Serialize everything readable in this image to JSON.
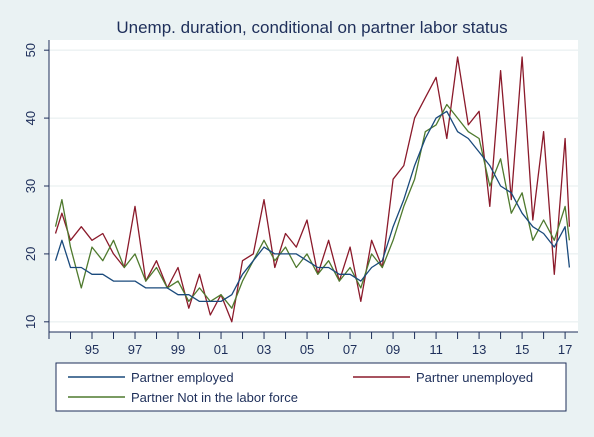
{
  "chart_data": {
    "type": "line",
    "title": "Unemp. duration, conditional on partner labor status",
    "xlabel": "",
    "ylabel": "",
    "xlim": [
      1993.0,
      2017.6
    ],
    "ylim": [
      8.5,
      51.5
    ],
    "y_ticks": [
      10,
      20,
      30,
      40,
      50
    ],
    "x_tick_labels": [
      {
        "x": 1995,
        "label": "95"
      },
      {
        "x": 1997,
        "label": "97"
      },
      {
        "x": 1999,
        "label": "99"
      },
      {
        "x": 2001,
        "label": "01"
      },
      {
        "x": 2003,
        "label": "03"
      },
      {
        "x": 2005,
        "label": "05"
      },
      {
        "x": 2007,
        "label": "07"
      },
      {
        "x": 2009,
        "label": "09"
      },
      {
        "x": 2011,
        "label": "11"
      },
      {
        "x": 2013,
        "label": "13"
      },
      {
        "x": 2015,
        "label": "15"
      },
      {
        "x": 2017,
        "label": "17"
      }
    ],
    "grid": "horizontal",
    "legend_position": "bottom",
    "series": [
      {
        "name": "Partner employed",
        "color": "#1a4a7c",
        "x": [
          1993.3,
          1993.6,
          1994.0,
          1994.5,
          1995.0,
          1995.5,
          1996.0,
          1996.5,
          1997.0,
          1997.5,
          1998.0,
          1998.5,
          1999.0,
          1999.5,
          2000.0,
          2000.5,
          2001.0,
          2001.5,
          2002.0,
          2002.5,
          2003.0,
          2003.5,
          2004.0,
          2004.5,
          2005.0,
          2005.5,
          2006.0,
          2006.5,
          2007.0,
          2007.5,
          2008.0,
          2008.5,
          2009.0,
          2009.5,
          2010.0,
          2010.5,
          2011.0,
          2011.5,
          2012.0,
          2012.5,
          2013.0,
          2013.5,
          2014.0,
          2014.5,
          2015.0,
          2015.5,
          2016.0,
          2016.5,
          2017.0,
          2017.2
        ],
        "y": [
          19,
          22,
          18,
          18,
          17,
          17,
          16,
          16,
          16,
          15,
          15,
          15,
          14,
          14,
          13,
          13,
          13,
          14,
          17,
          19,
          21,
          20,
          20,
          20,
          19,
          18,
          18,
          17,
          17,
          16,
          18,
          19,
          24,
          28,
          33,
          37,
          40,
          41,
          38,
          37,
          35,
          33,
          30,
          29,
          26,
          24,
          23,
          21,
          24,
          18
        ]
      },
      {
        "name": "Partner unemployed",
        "color": "#8b1a2b",
        "x": [
          1993.3,
          1993.6,
          1994.0,
          1994.5,
          1995.0,
          1995.5,
          1996.0,
          1996.5,
          1997.0,
          1997.5,
          1998.0,
          1998.5,
          1999.0,
          1999.5,
          2000.0,
          2000.5,
          2001.0,
          2001.5,
          2002.0,
          2002.5,
          2003.0,
          2003.5,
          2004.0,
          2004.5,
          2005.0,
          2005.5,
          2006.0,
          2006.5,
          2007.0,
          2007.5,
          2008.0,
          2008.5,
          2009.0,
          2009.5,
          2010.0,
          2010.5,
          2011.0,
          2011.5,
          2012.0,
          2012.5,
          2013.0,
          2013.5,
          2014.0,
          2014.5,
          2015.0,
          2015.5,
          2016.0,
          2016.5,
          2017.0,
          2017.2
        ],
        "y": [
          23,
          26,
          22,
          24,
          22,
          23,
          20,
          18,
          27,
          16,
          19,
          15,
          18,
          12,
          17,
          11,
          14,
          10,
          19,
          20,
          28,
          18,
          23,
          21,
          25,
          17,
          22,
          16,
          21,
          13,
          22,
          18,
          31,
          33,
          40,
          43,
          46,
          37,
          49,
          39,
          41,
          27,
          47,
          28,
          49,
          25,
          38,
          17,
          37,
          24
        ]
      },
      {
        "name": "Partner Not in the labor force",
        "color": "#4f7a2e",
        "x": [
          1993.3,
          1993.6,
          1994.0,
          1994.5,
          1995.0,
          1995.5,
          1996.0,
          1996.5,
          1997.0,
          1997.5,
          1998.0,
          1998.5,
          1999.0,
          1999.5,
          2000.0,
          2000.5,
          2001.0,
          2001.5,
          2002.0,
          2002.5,
          2003.0,
          2003.5,
          2004.0,
          2004.5,
          2005.0,
          2005.5,
          2006.0,
          2006.5,
          2007.0,
          2007.5,
          2008.0,
          2008.5,
          2009.0,
          2009.5,
          2010.0,
          2010.5,
          2011.0,
          2011.5,
          2012.0,
          2012.5,
          2013.0,
          2013.5,
          2014.0,
          2014.5,
          2015.0,
          2015.5,
          2016.0,
          2016.5,
          2017.0,
          2017.2
        ],
        "y": [
          24,
          28,
          21,
          15,
          21,
          19,
          22,
          18,
          20,
          16,
          18,
          15,
          16,
          13,
          15,
          13,
          14,
          12,
          16,
          19,
          22,
          19,
          21,
          18,
          20,
          17,
          19,
          16,
          18,
          15,
          20,
          18,
          22,
          27,
          31,
          38,
          39,
          42,
          40,
          38,
          37,
          30,
          34,
          26,
          29,
          22,
          25,
          22,
          27,
          22
        ]
      }
    ]
  }
}
